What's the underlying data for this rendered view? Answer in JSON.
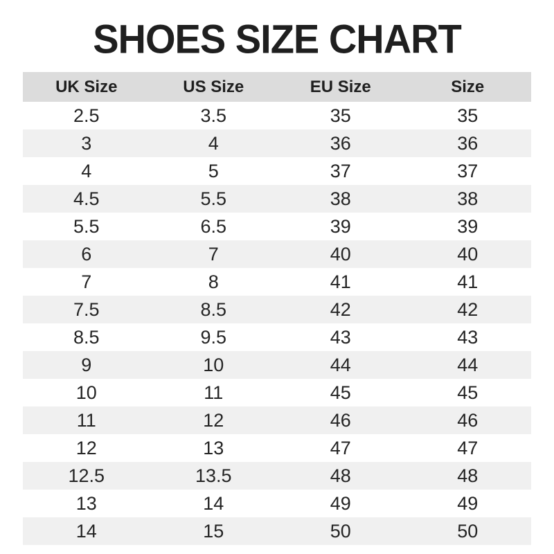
{
  "page": {
    "title": "SHOES SIZE CHART"
  },
  "colors": {
    "background": "#ffffff",
    "title_text": "#1f1f1f",
    "header_background": "#dcdcdc",
    "alternate_row_background": "#f0f0f0",
    "cell_text": "#242424"
  },
  "chart_data": {
    "type": "table",
    "title": "SHOES SIZE CHART",
    "columns": [
      "UK Size",
      "US Size",
      "EU Size",
      "Size"
    ],
    "rows": [
      [
        "2.5",
        "3.5",
        "35",
        "35"
      ],
      [
        "3",
        "4",
        "36",
        "36"
      ],
      [
        "4",
        "5",
        "37",
        "37"
      ],
      [
        "4.5",
        "5.5",
        "38",
        "38"
      ],
      [
        "5.5",
        "6.5",
        "39",
        "39"
      ],
      [
        "6",
        "7",
        "40",
        "40"
      ],
      [
        "7",
        "8",
        "41",
        "41"
      ],
      [
        "7.5",
        "8.5",
        "42",
        "42"
      ],
      [
        "8.5",
        "9.5",
        "43",
        "43"
      ],
      [
        "9",
        "10",
        "44",
        "44"
      ],
      [
        "10",
        "11",
        "45",
        "45"
      ],
      [
        "11",
        "12",
        "46",
        "46"
      ],
      [
        "12",
        "13",
        "47",
        "47"
      ],
      [
        "12.5",
        "13.5",
        "48",
        "48"
      ],
      [
        "13",
        "14",
        "49",
        "49"
      ],
      [
        "14",
        "15",
        "50",
        "50"
      ]
    ],
    "layout": {
      "striped": true,
      "first_data_row_background": "white",
      "header_background": "#dcdcdc",
      "alternate_row_background": "#f0f0f0",
      "column_alignment": "center"
    }
  }
}
